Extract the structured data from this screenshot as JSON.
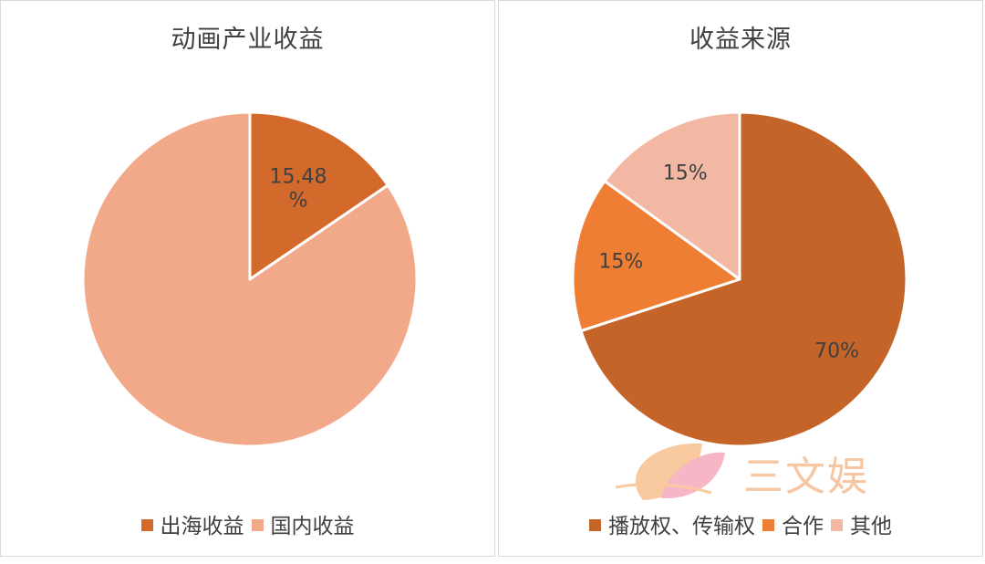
{
  "chart_data": [
    {
      "type": "pie",
      "title": "动画产业收益",
      "categories": [
        "出海收益",
        "国内收益"
      ],
      "values": [
        15.48,
        84.52
      ],
      "data_labels": [
        "15.48\n%",
        ""
      ],
      "colors": [
        "#d4692c",
        "#f2a98a"
      ],
      "legend_position": "bottom",
      "start_angle": "12 o'clock",
      "direction": "clockwise"
    },
    {
      "type": "pie",
      "title": "收益来源",
      "categories": [
        "播放权、传输权",
        "合作",
        "其他"
      ],
      "values": [
        70,
        15,
        15
      ],
      "data_labels": [
        "70%",
        "15%",
        "15%"
      ],
      "colors": [
        "#c46428",
        "#ed7e33",
        "#f3b8a3"
      ],
      "legend_position": "bottom",
      "start_angle": "12 o'clock",
      "direction": "clockwise"
    }
  ],
  "watermark": {
    "text": "三文娱",
    "colors": [
      "#f9c9a0",
      "#f7b6c6",
      "#fde3cf"
    ]
  }
}
